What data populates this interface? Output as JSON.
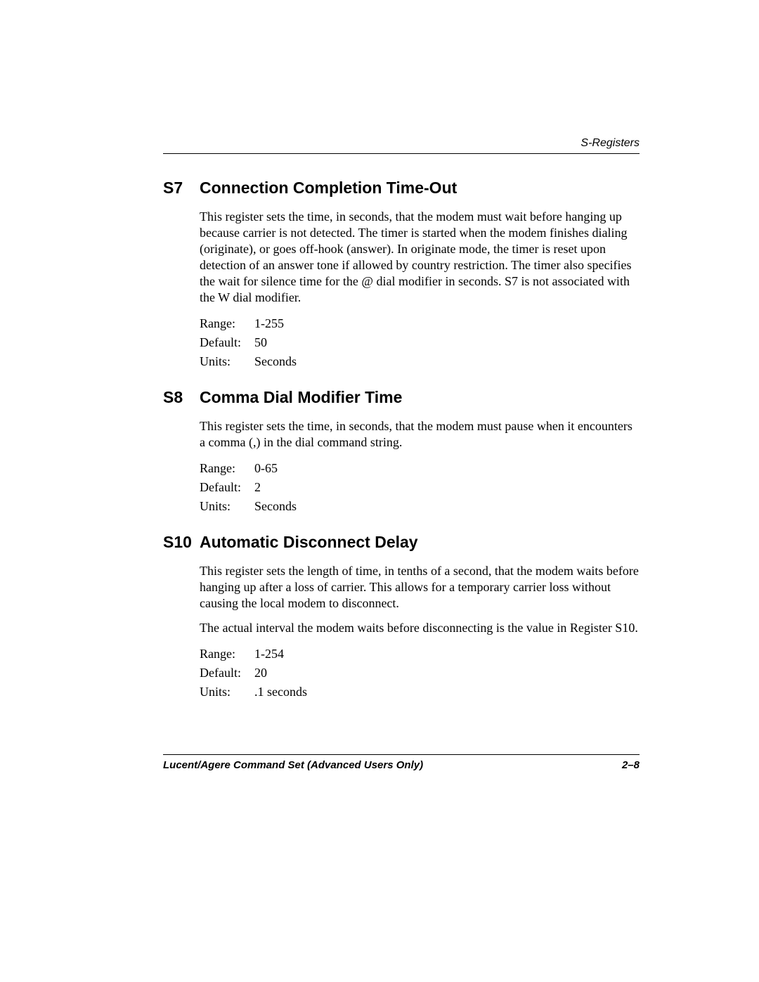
{
  "header": {
    "section_label": "S-Registers"
  },
  "sections": [
    {
      "code": "S7",
      "title": "Connection Completion Time-Out",
      "paragraphs": [
        "This register sets the time, in seconds, that the modem must wait before hanging up because carrier is not detected. The timer is started when the modem finishes dialing (originate), or goes off-hook (answer). In originate mode, the timer is reset upon detection of an answer tone if allowed by country restriction. The timer also specifies the wait for silence time for the @ dial modifier in seconds. S7 is not associated with the W dial modifier."
      ],
      "params": {
        "range_label": "Range:",
        "range_value": "1-255",
        "default_label": "Default:",
        "default_value": "50",
        "units_label": "Units:",
        "units_value": "Seconds"
      }
    },
    {
      "code": "S8",
      "title": "Comma Dial Modifier Time",
      "paragraphs": [
        "This register sets the time, in seconds, that the modem must pause when it encounters a comma (,) in the dial command string."
      ],
      "params": {
        "range_label": "Range:",
        "range_value": "0-65",
        "default_label": "Default:",
        "default_value": "2",
        "units_label": "Units:",
        "units_value": "Seconds"
      }
    },
    {
      "code": "S10",
      "title": "Automatic Disconnect Delay",
      "paragraphs": [
        "This register sets the length of time, in tenths of a second, that the modem waits before hanging up after a loss of carrier. This allows for a temporary carrier loss without causing the local modem to disconnect.",
        "The actual interval the modem waits before disconnecting is the value in Register S10."
      ],
      "params": {
        "range_label": "Range:",
        "range_value": "1-254",
        "default_label": "Default:",
        "default_value": "20",
        "units_label": "Units:",
        "units_value": ".1 seconds"
      }
    }
  ],
  "footer": {
    "left": "Lucent/Agere Command Set (Advanced Users Only)",
    "right": "2–8"
  }
}
